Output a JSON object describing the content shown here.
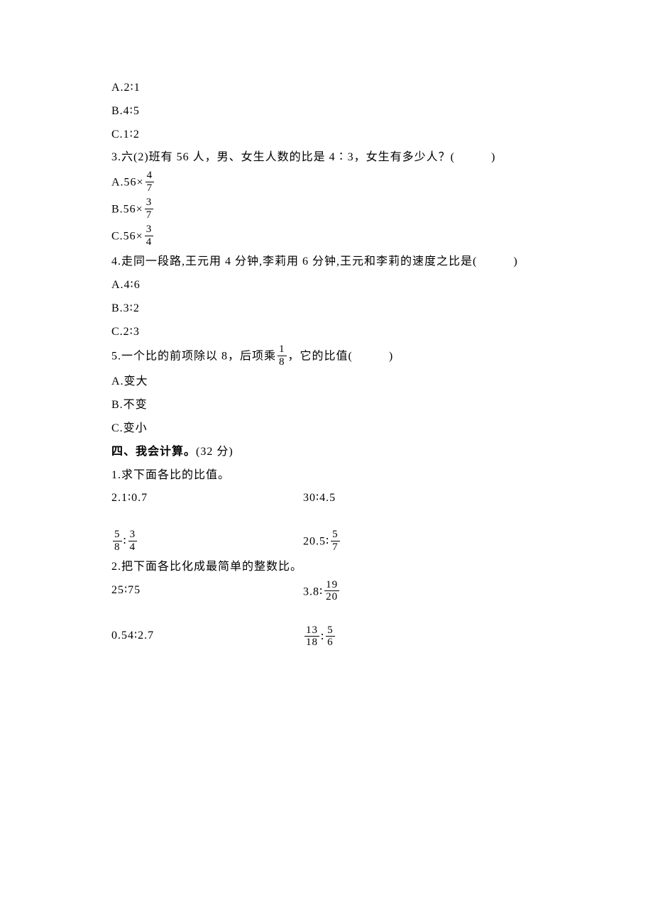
{
  "q2_options": {
    "a": "A.2∶1",
    "b": "B.4∶5",
    "c": "C.1∶2"
  },
  "q3": {
    "stem": "3.六(2)班有 56 人，男、女生人数的比是 4∶3，女生有多少人？(　　　)",
    "a_prefix": "A.56×",
    "a_num": "4",
    "a_den": "7",
    "b_prefix": "B.56×",
    "b_num": "3",
    "b_den": "7",
    "c_prefix": "C.56×",
    "c_num": "3",
    "c_den": "4"
  },
  "q4": {
    "stem": "4.走同一段路,王元用 4 分钟,李莉用 6 分钟,王元和李莉的速度之比是(　　　)",
    "a": "A.4∶6",
    "b": "B.3∶2",
    "c": "C.2∶3"
  },
  "q5": {
    "stem_before": "5.一个比的前项除以 8，后项乘",
    "stem_num": "1",
    "stem_den": "8",
    "stem_after": "，它的比值(　　　)",
    "a": "A.变大",
    "b": "B.不变",
    "c": "C.变小"
  },
  "section4_title": "四、我会计算。",
  "section4_points": "(32 分)",
  "sub1_title": "1.求下面各比的比值。",
  "sub1_row1": {
    "left": "2.1∶0.7",
    "right": "30∶4.5"
  },
  "sub1_row2": {
    "left_num1": "5",
    "left_den1": "8",
    "left_sep": "∶",
    "left_num2": "3",
    "left_den2": "4",
    "right_prefix": "20.5∶",
    "right_num": "5",
    "right_den": "7"
  },
  "sub2_title": "2.把下面各比化成最简单的整数比。",
  "sub2_row1": {
    "left": "25∶75",
    "right_prefix": "3.8∶",
    "right_num": "19",
    "right_den": "20"
  },
  "sub2_row2": {
    "left": "0.54∶2.7",
    "right_num1": "13",
    "right_den1": "18",
    "right_sep": "∶",
    "right_num2": "5",
    "right_den2": "6"
  }
}
